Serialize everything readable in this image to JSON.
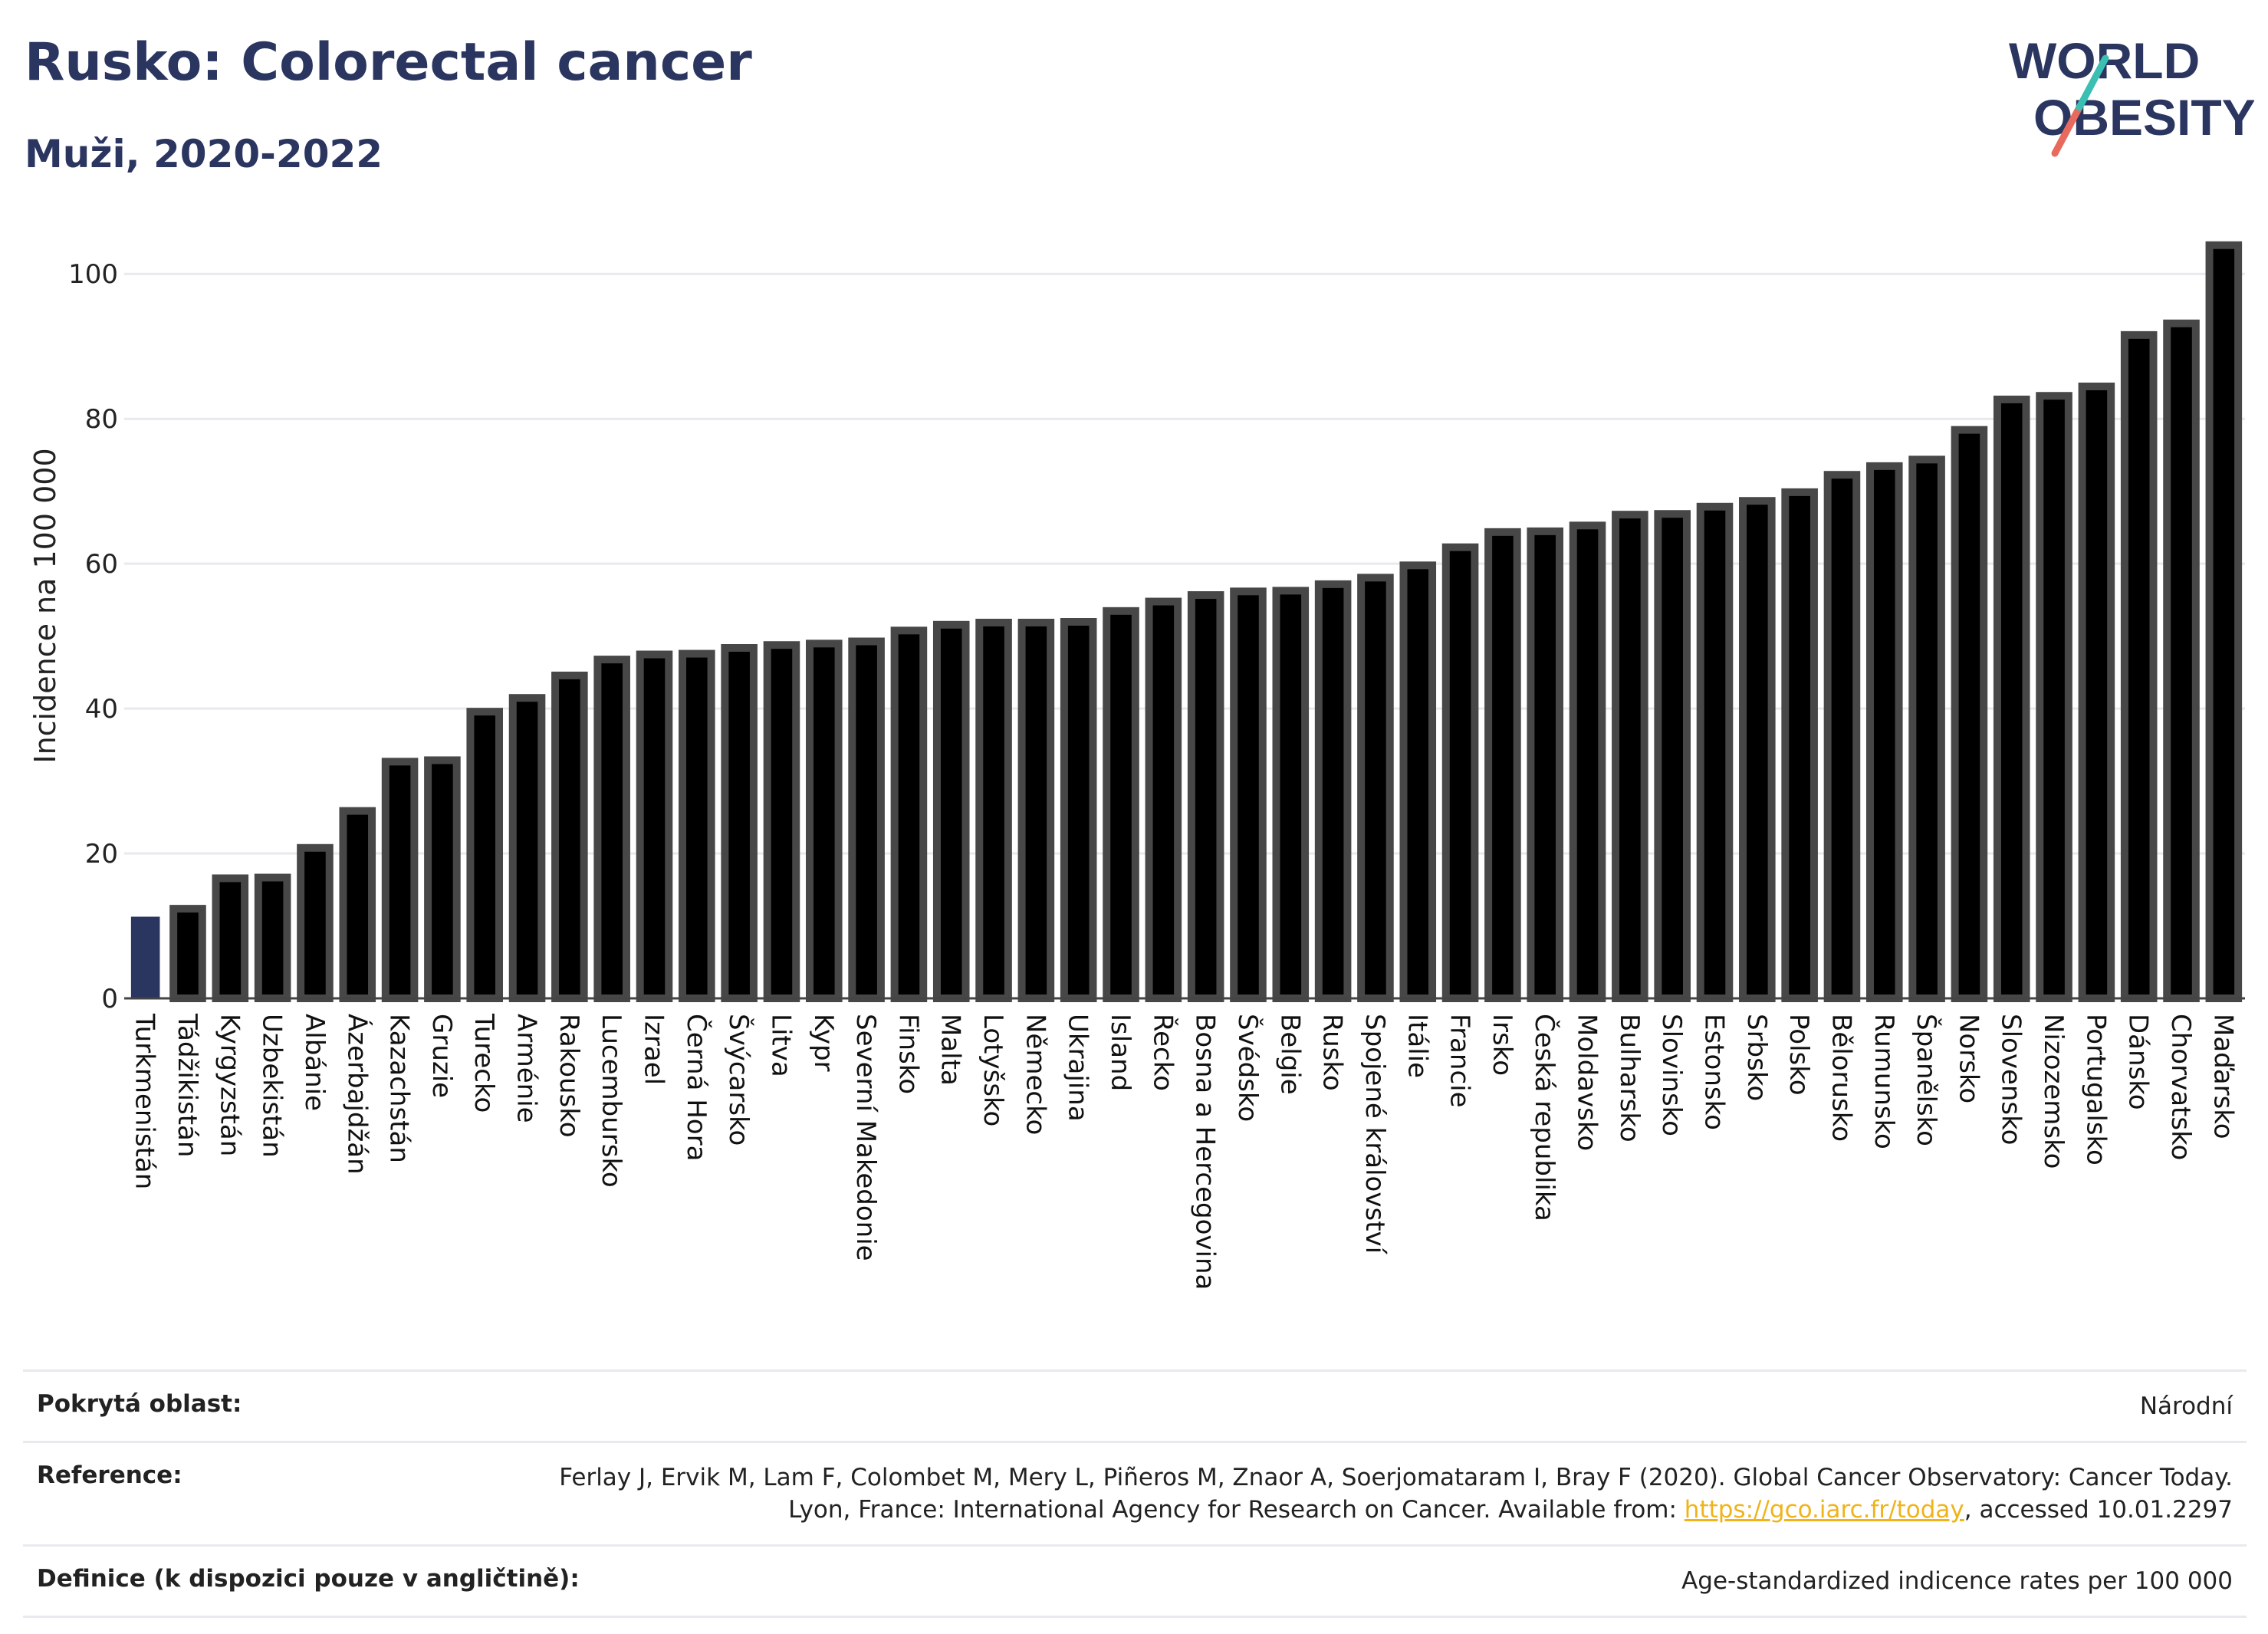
{
  "header": {
    "title": "Rusko: Colorectal cancer",
    "subtitle": "Muži, 2020-2022"
  },
  "logo": {
    "line1": "WORLD",
    "line2": "OBESITY"
  },
  "colors": {
    "bar": "#000000",
    "bar_border": "#474747",
    "highlight": "#2a3560",
    "grid": "#e9e9ee",
    "text": "#2a3560"
  },
  "chart_data": {
    "type": "bar",
    "ylabel": "Incidence na 100 000",
    "ylim": [
      0,
      105
    ],
    "yticks": [
      0,
      20,
      40,
      60,
      80,
      100
    ],
    "grid": true,
    "highlight_index": 0,
    "categories": [
      "Turkmenistán",
      "Tádžikistán",
      "Kyrgyzstán",
      "Uzbekistán",
      "Albánie",
      "Ázerbajdžán",
      "Kazachstán",
      "Gruzie",
      "Turecko",
      "Arménie",
      "Rakousko",
      "Lucembursko",
      "Izrael",
      "Černá Hora",
      "Švýcarsko",
      "Litva",
      "Kypr",
      "Severní Makedonie",
      "Finsko",
      "Malta",
      "Lotyšsko",
      "Německo",
      "Ukrajina",
      "Island",
      "Řecko",
      "Bosna a Hercegovina",
      "Švédsko",
      "Belgie",
      "Rusko",
      "Spojené království",
      "Itálie",
      "Francie",
      "Irsko",
      "Česká republika",
      "Moldavsko",
      "Bulharsko",
      "Slovinsko",
      "Estonsko",
      "Srbsko",
      "Polsko",
      "Bělorusko",
      "Rumunsko",
      "Španělsko",
      "Norsko",
      "Slovensko",
      "Nizozemsko",
      "Portugalsko",
      "Dánsko",
      "Chorvatsko",
      "Maďarsko"
    ],
    "values": [
      11.8,
      12.9,
      17.1,
      17.2,
      21.3,
      26.4,
      33.2,
      33.4,
      40.1,
      42.0,
      45.1,
      47.3,
      48.0,
      48.1,
      48.9,
      49.3,
      49.5,
      49.8,
      51.3,
      52.1,
      52.4,
      52.4,
      52.5,
      54.0,
      55.3,
      56.2,
      56.7,
      56.8,
      57.7,
      58.6,
      60.3,
      62.8,
      64.9,
      65.0,
      65.8,
      67.3,
      67.4,
      68.4,
      69.2,
      70.4,
      72.8,
      74.0,
      74.9,
      79.0,
      83.2,
      83.7,
      85.0,
      92.1,
      93.7,
      104.5
    ]
  },
  "footer": {
    "coverage_label": "Pokrytá oblast:",
    "coverage_value": "Národní",
    "reference_label": "Reference:",
    "reference_text1": "Ferlay J, Ervik M, Lam F, Colombet M, Mery L, Piñeros M, Znaor A, Soerjomataram I, Bray F (2020). Global Cancer Observatory: Cancer Today. Lyon, France: International Agency for Research on Cancer. Available from: ",
    "reference_link": "https://gco.iarc.fr/today",
    "reference_text2": ", accessed 10.01.2297",
    "definition_label": "Definice (k dispozici pouze v angličtině):",
    "definition_value": "Age-standardized indicence rates per 100 000"
  }
}
